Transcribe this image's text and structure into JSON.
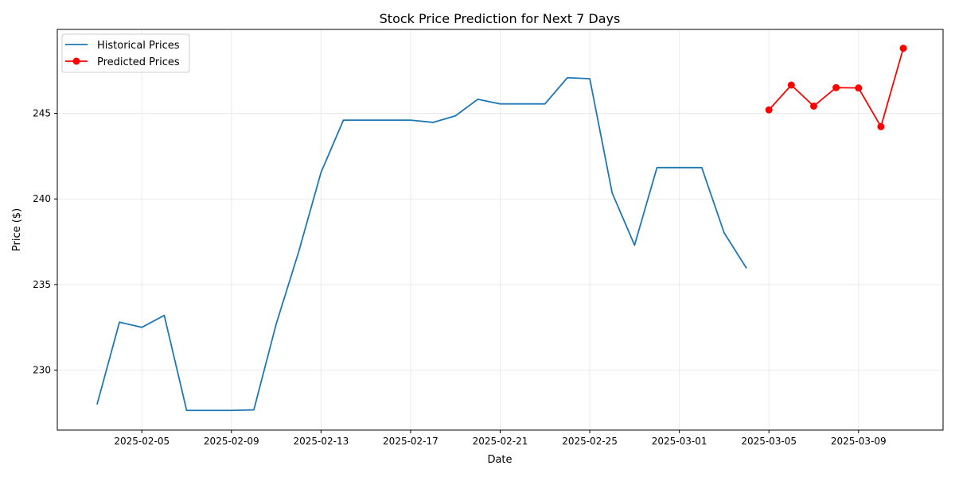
{
  "chart_data": {
    "type": "line",
    "title": "Stock Price Prediction for Next 7 Days",
    "xlabel": "Date",
    "ylabel": "Price ($)",
    "grid": true,
    "legend_position": "top-left",
    "xlim": [
      "2025-02-01T05:24",
      "2025-03-12T18:36"
    ],
    "ylim": [
      226.5,
      249.9
    ],
    "x_ticks": [
      "2025-02-05",
      "2025-02-09",
      "2025-02-13",
      "2025-02-17",
      "2025-02-21",
      "2025-02-25",
      "2025-03-01",
      "2025-03-05",
      "2025-03-09"
    ],
    "y_ticks": [
      230,
      235,
      240,
      245
    ],
    "series": [
      {
        "name": "Historical Prices",
        "color": "#1f77b4",
        "marker": "none",
        "x": [
          "2025-02-03",
          "2025-02-04",
          "2025-02-05",
          "2025-02-06",
          "2025-02-07",
          "2025-02-08",
          "2025-02-09",
          "2025-02-10",
          "2025-02-11",
          "2025-02-12",
          "2025-02-13",
          "2025-02-14",
          "2025-02-15",
          "2025-02-16",
          "2025-02-17",
          "2025-02-18",
          "2025-02-19",
          "2025-02-20",
          "2025-02-21",
          "2025-02-22",
          "2025-02-23",
          "2025-02-24",
          "2025-02-25",
          "2025-02-26",
          "2025-02-27",
          "2025-02-28",
          "2025-03-01",
          "2025-03-02",
          "2025-03-03",
          "2025-03-04"
        ],
        "values": [
          228.0,
          232.8,
          232.5,
          233.2,
          227.65,
          227.65,
          227.65,
          227.68,
          232.7,
          236.9,
          241.55,
          244.6,
          244.6,
          244.6,
          244.6,
          244.47,
          244.85,
          245.82,
          245.55,
          245.55,
          245.55,
          247.08,
          247.02,
          240.35,
          237.3,
          241.83,
          241.83,
          241.83,
          238.02,
          235.95
        ]
      },
      {
        "name": "Predicted Prices",
        "color": "#ff0000",
        "marker": "circle",
        "x": [
          "2025-03-05",
          "2025-03-06",
          "2025-03-07",
          "2025-03-08",
          "2025-03-09",
          "2025-03-10",
          "2025-03-11"
        ],
        "values": [
          245.2,
          246.65,
          245.42,
          246.5,
          246.48,
          244.22,
          248.8
        ]
      }
    ]
  }
}
